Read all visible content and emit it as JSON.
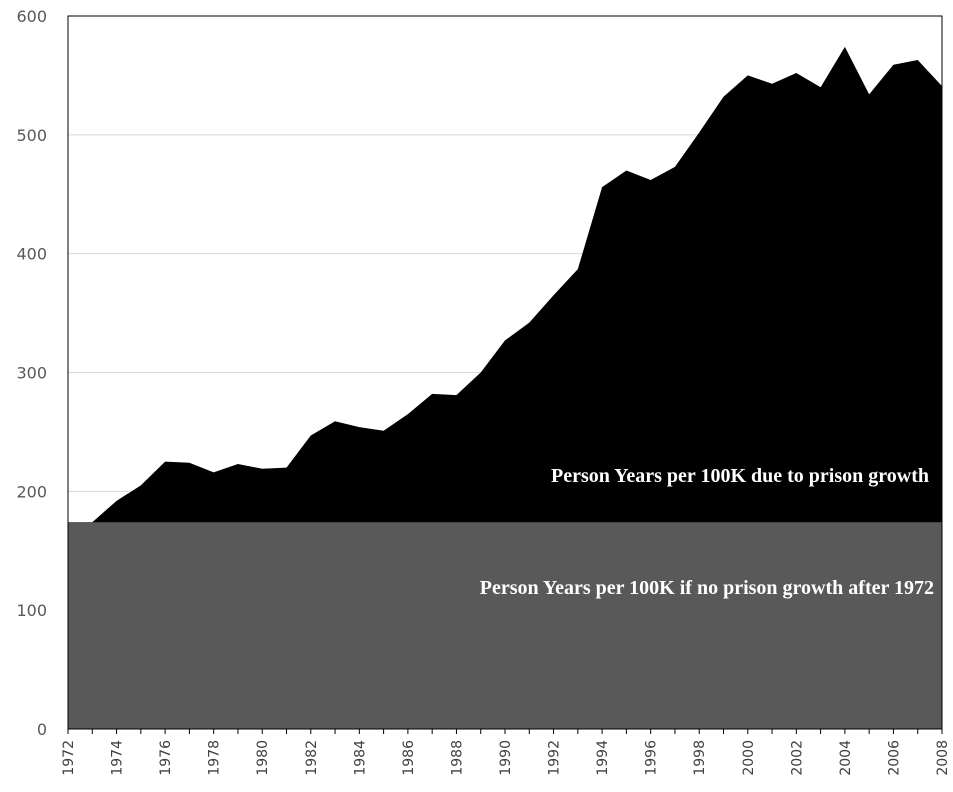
{
  "chart_data": {
    "type": "area",
    "stacked": true,
    "x": [
      1972,
      1973,
      1974,
      1975,
      1976,
      1977,
      1978,
      1979,
      1980,
      1981,
      1982,
      1983,
      1984,
      1985,
      1986,
      1987,
      1988,
      1989,
      1990,
      1991,
      1992,
      1993,
      1994,
      1995,
      1996,
      1997,
      1998,
      1999,
      2000,
      2001,
      2002,
      2003,
      2004,
      2005,
      2006,
      2007,
      2008
    ],
    "x_tick_labels": [
      "1972",
      "1974",
      "1976",
      "1978",
      "1980",
      "1982",
      "1984",
      "1986",
      "1988",
      "1990",
      "1992",
      "1994",
      "1996",
      "1998",
      "2000",
      "2002",
      "2004",
      "2006",
      "2008"
    ],
    "y_tick_labels": [
      "0",
      "100",
      "200",
      "300",
      "400",
      "500",
      "600"
    ],
    "ylim": [
      0,
      600
    ],
    "grid": true,
    "title": "",
    "xlabel": "",
    "ylabel": "",
    "series": [
      {
        "label": "Person Years per 100K if no prison growth after 1972",
        "color": "#595959",
        "values": [
          174,
          174,
          174,
          174,
          174,
          174,
          174,
          174,
          174,
          174,
          174,
          174,
          174,
          174,
          174,
          174,
          174,
          174,
          174,
          174,
          174,
          174,
          174,
          174,
          174,
          174,
          174,
          174,
          174,
          174,
          174,
          174,
          174,
          174,
          174,
          174,
          174
        ]
      },
      {
        "label": "Person Years per 100K due to prison growth",
        "color": "#000000",
        "total_values": [
          174,
          174,
          192,
          205,
          225,
          224,
          216,
          223,
          219,
          220,
          247,
          259,
          254,
          251,
          265,
          282,
          281,
          300,
          327,
          342,
          365,
          387,
          456,
          470,
          462,
          473,
          502,
          532,
          550,
          543,
          552,
          540,
          574,
          534,
          559,
          563,
          541
        ]
      }
    ]
  }
}
